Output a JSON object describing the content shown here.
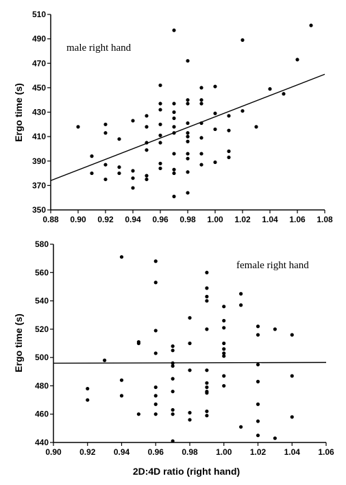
{
  "chart_data": [
    {
      "type": "scatter",
      "annotation": "male right hand",
      "ylabel": "Ergo time (s)",
      "xlabel": "",
      "xlim": [
        0.88,
        1.08
      ],
      "ylim": [
        350,
        510
      ],
      "xticks": [
        "0.88",
        "0.90",
        "0.92",
        "0.94",
        "0.96",
        "0.98",
        "1.00",
        "1.02",
        "1.04",
        "1.06",
        "1.08"
      ],
      "yticks": [
        "350",
        "370",
        "390",
        "410",
        "430",
        "450",
        "470",
        "490",
        "510"
      ],
      "grid": false,
      "regression_line": {
        "x": [
          0.88,
          1.08
        ],
        "y": [
          374,
          461
        ]
      },
      "points": [
        [
          0.9,
          418
        ],
        [
          0.91,
          394
        ],
        [
          0.91,
          380
        ],
        [
          0.92,
          420
        ],
        [
          0.92,
          413
        ],
        [
          0.92,
          387
        ],
        [
          0.92,
          375
        ],
        [
          0.93,
          408
        ],
        [
          0.93,
          385
        ],
        [
          0.93,
          380
        ],
        [
          0.94,
          423
        ],
        [
          0.94,
          382
        ],
        [
          0.94,
          376
        ],
        [
          0.94,
          368
        ],
        [
          0.95,
          427
        ],
        [
          0.95,
          418
        ],
        [
          0.95,
          405
        ],
        [
          0.95,
          399
        ],
        [
          0.95,
          378
        ],
        [
          0.95,
          375
        ],
        [
          0.96,
          452
        ],
        [
          0.96,
          437
        ],
        [
          0.96,
          432
        ],
        [
          0.96,
          420
        ],
        [
          0.96,
          411
        ],
        [
          0.96,
          405
        ],
        [
          0.96,
          388
        ],
        [
          0.96,
          384
        ],
        [
          0.97,
          497
        ],
        [
          0.97,
          437
        ],
        [
          0.97,
          430
        ],
        [
          0.97,
          425
        ],
        [
          0.97,
          418
        ],
        [
          0.97,
          413
        ],
        [
          0.97,
          396
        ],
        [
          0.97,
          383
        ],
        [
          0.97,
          380
        ],
        [
          0.97,
          361
        ],
        [
          0.98,
          472
        ],
        [
          0.98,
          440
        ],
        [
          0.98,
          437
        ],
        [
          0.98,
          421
        ],
        [
          0.98,
          413
        ],
        [
          0.98,
          410
        ],
        [
          0.98,
          406
        ],
        [
          0.98,
          396
        ],
        [
          0.98,
          392
        ],
        [
          0.98,
          381
        ],
        [
          0.98,
          364
        ],
        [
          0.99,
          450
        ],
        [
          0.99,
          440
        ],
        [
          0.99,
          437
        ],
        [
          0.99,
          421
        ],
        [
          0.99,
          409
        ],
        [
          0.99,
          396
        ],
        [
          0.99,
          387
        ],
        [
          1.0,
          451
        ],
        [
          1.0,
          429
        ],
        [
          1.0,
          416
        ],
        [
          1.0,
          389
        ],
        [
          1.01,
          427
        ],
        [
          1.01,
          415
        ],
        [
          1.01,
          398
        ],
        [
          1.01,
          393
        ],
        [
          1.02,
          489
        ],
        [
          1.02,
          431
        ],
        [
          1.03,
          418
        ],
        [
          1.04,
          449
        ],
        [
          1.05,
          445
        ],
        [
          1.06,
          473
        ],
        [
          1.07,
          501
        ]
      ]
    },
    {
      "type": "scatter",
      "annotation": "female right hand",
      "ylabel": "Ergo time (s)",
      "xlabel": "2D:4D ratio (right hand)",
      "xlim": [
        0.9,
        1.06
      ],
      "ylim": [
        440,
        580
      ],
      "xticks": [
        "0.90",
        "0.92",
        "0.94",
        "0.96",
        "0.98",
        "1.00",
        "1.02",
        "1.04",
        "1.06"
      ],
      "yticks": [
        "440",
        "460",
        "480",
        "500",
        "520",
        "540",
        "560",
        "580"
      ],
      "grid": false,
      "regression_line": {
        "x": [
          0.9,
          1.06
        ],
        "y": [
          496,
          496.5
        ]
      },
      "points": [
        [
          0.92,
          478
        ],
        [
          0.92,
          470
        ],
        [
          0.93,
          498
        ],
        [
          0.94,
          571
        ],
        [
          0.94,
          484
        ],
        [
          0.94,
          473
        ],
        [
          0.95,
          511
        ],
        [
          0.95,
          510
        ],
        [
          0.95,
          460
        ],
        [
          0.96,
          568
        ],
        [
          0.96,
          553
        ],
        [
          0.96,
          519
        ],
        [
          0.96,
          503
        ],
        [
          0.96,
          479
        ],
        [
          0.96,
          473
        ],
        [
          0.96,
          467
        ],
        [
          0.96,
          460
        ],
        [
          0.97,
          508
        ],
        [
          0.97,
          505
        ],
        [
          0.97,
          496
        ],
        [
          0.97,
          494
        ],
        [
          0.97,
          485
        ],
        [
          0.97,
          476
        ],
        [
          0.97,
          463
        ],
        [
          0.97,
          460
        ],
        [
          0.97,
          441
        ],
        [
          0.98,
          528
        ],
        [
          0.98,
          510
        ],
        [
          0.98,
          491
        ],
        [
          0.98,
          461
        ],
        [
          0.98,
          456
        ],
        [
          0.99,
          560
        ],
        [
          0.99,
          549
        ],
        [
          0.99,
          543
        ],
        [
          0.99,
          540
        ],
        [
          0.99,
          520
        ],
        [
          0.99,
          491
        ],
        [
          0.99,
          482
        ],
        [
          0.99,
          479
        ],
        [
          0.99,
          476
        ],
        [
          0.99,
          475
        ],
        [
          0.99,
          462
        ],
        [
          0.99,
          459
        ],
        [
          1.0,
          536
        ],
        [
          1.0,
          526
        ],
        [
          1.0,
          521
        ],
        [
          1.0,
          510
        ],
        [
          1.0,
          506
        ],
        [
          1.0,
          503
        ],
        [
          1.0,
          501
        ],
        [
          1.0,
          487
        ],
        [
          1.0,
          480
        ],
        [
          1.01,
          545
        ],
        [
          1.01,
          537
        ],
        [
          1.01,
          451
        ],
        [
          1.02,
          522
        ],
        [
          1.02,
          516
        ],
        [
          1.02,
          495
        ],
        [
          1.02,
          483
        ],
        [
          1.02,
          467
        ],
        [
          1.02,
          455
        ],
        [
          1.02,
          445
        ],
        [
          1.03,
          520
        ],
        [
          1.03,
          443
        ],
        [
          1.04,
          516
        ],
        [
          1.04,
          487
        ],
        [
          1.04,
          458
        ]
      ]
    }
  ]
}
